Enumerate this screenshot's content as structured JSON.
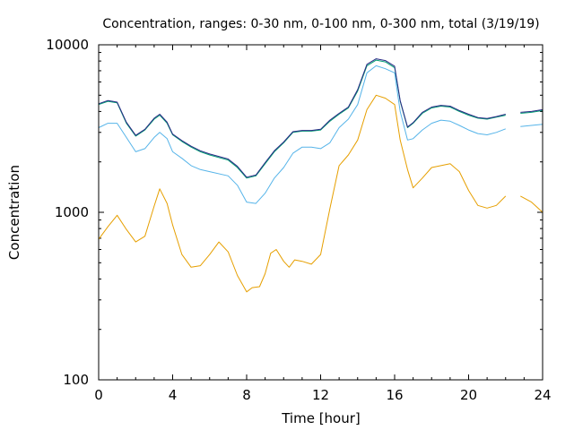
{
  "chart_data": {
    "type": "line",
    "title": "Concentration, ranges: 0-30 nm, 0-100 nm, 0-300 nm, total (3/19/19)",
    "xlabel": "Time [hour]",
    "ylabel": "Concentration",
    "xlim": [
      0,
      24
    ],
    "ylim": [
      100,
      10000
    ],
    "yscale": "log",
    "xticks": [
      0,
      4,
      8,
      12,
      16,
      20,
      24
    ],
    "yticks": [
      100,
      1000,
      10000
    ],
    "xtick_labels": [
      "0",
      "4",
      "8",
      "12",
      "16",
      "20",
      "24"
    ],
    "ytick_labels": [
      "100",
      "1000",
      "10000"
    ],
    "grid": false,
    "legend": "none",
    "series": [
      {
        "color": "#e69f00",
        "points": [
          [
            0,
            690
          ],
          [
            0.5,
            820
          ],
          [
            1,
            960
          ],
          [
            1.5,
            790
          ],
          [
            2,
            665
          ],
          [
            2.5,
            720
          ],
          [
            3,
            1090
          ],
          [
            3.3,
            1380
          ],
          [
            3.7,
            1130
          ],
          [
            4,
            840
          ],
          [
            4.5,
            560
          ],
          [
            5,
            470
          ],
          [
            5.5,
            480
          ],
          [
            6,
            560
          ],
          [
            6.5,
            665
          ],
          [
            7,
            580
          ],
          [
            7.5,
            420
          ],
          [
            8,
            335
          ],
          [
            8.3,
            355
          ],
          [
            8.7,
            360
          ],
          [
            9,
            430
          ],
          [
            9.3,
            570
          ],
          [
            9.6,
            600
          ],
          [
            10,
            510
          ],
          [
            10.3,
            470
          ],
          [
            10.6,
            520
          ],
          [
            11,
            510
          ],
          [
            11.5,
            490
          ],
          [
            12,
            560
          ],
          [
            12.5,
            1050
          ],
          [
            13,
            1900
          ],
          [
            13.5,
            2200
          ],
          [
            14,
            2700
          ],
          [
            14.5,
            4100
          ],
          [
            15,
            5000
          ],
          [
            15.5,
            4800
          ],
          [
            16,
            4400
          ],
          [
            16.3,
            2700
          ],
          [
            16.7,
            1800
          ],
          [
            17,
            1400
          ],
          [
            17.5,
            1600
          ],
          [
            18,
            1850
          ],
          [
            18.5,
            1900
          ],
          [
            19,
            1950
          ],
          [
            19.5,
            1750
          ],
          [
            20,
            1350
          ],
          [
            20.5,
            1100
          ],
          [
            21,
            1060
          ],
          [
            21.5,
            1100
          ],
          [
            22,
            1250
          ],
          [
            null,
            null
          ],
          [
            22.8,
            1250
          ],
          [
            23.4,
            1150
          ],
          [
            24,
            1000
          ]
        ]
      },
      {
        "color": "#56b4e9",
        "points": [
          [
            0,
            3200
          ],
          [
            0.5,
            3400
          ],
          [
            1,
            3400
          ],
          [
            1.5,
            2800
          ],
          [
            2,
            2300
          ],
          [
            2.5,
            2400
          ],
          [
            3,
            2800
          ],
          [
            3.3,
            3000
          ],
          [
            3.7,
            2750
          ],
          [
            4,
            2300
          ],
          [
            4.5,
            2100
          ],
          [
            5,
            1900
          ],
          [
            5.5,
            1800
          ],
          [
            6,
            1750
          ],
          [
            7,
            1650
          ],
          [
            7.5,
            1450
          ],
          [
            8,
            1150
          ],
          [
            8.5,
            1130
          ],
          [
            9,
            1300
          ],
          [
            9.5,
            1600
          ],
          [
            10,
            1850
          ],
          [
            10.5,
            2250
          ],
          [
            11,
            2450
          ],
          [
            11.5,
            2450
          ],
          [
            12,
            2400
          ],
          [
            12.5,
            2600
          ],
          [
            13,
            3200
          ],
          [
            13.5,
            3600
          ],
          [
            14,
            4400
          ],
          [
            14.5,
            6800
          ],
          [
            15,
            7500
          ],
          [
            15.5,
            7200
          ],
          [
            16,
            6800
          ],
          [
            16.3,
            4000
          ],
          [
            16.7,
            2700
          ],
          [
            17,
            2750
          ],
          [
            17.5,
            3100
          ],
          [
            18,
            3400
          ],
          [
            18.5,
            3550
          ],
          [
            19,
            3500
          ],
          [
            19.5,
            3300
          ],
          [
            20,
            3100
          ],
          [
            20.5,
            2950
          ],
          [
            21,
            2900
          ],
          [
            21.5,
            3000
          ],
          [
            22,
            3150
          ],
          [
            null,
            null
          ],
          [
            22.8,
            3250
          ],
          [
            23.4,
            3300
          ],
          [
            24,
            3350
          ]
        ]
      },
      {
        "color": "#009e73",
        "points": [
          [
            0,
            4400
          ],
          [
            0.5,
            4600
          ],
          [
            1,
            4500
          ],
          [
            1.5,
            3400
          ],
          [
            2,
            2850
          ],
          [
            2.5,
            3100
          ],
          [
            3,
            3600
          ],
          [
            3.3,
            3800
          ],
          [
            3.7,
            3400
          ],
          [
            4,
            2900
          ],
          [
            4.5,
            2650
          ],
          [
            5,
            2450
          ],
          [
            5.5,
            2300
          ],
          [
            6,
            2200
          ],
          [
            7,
            2050
          ],
          [
            7.5,
            1850
          ],
          [
            8,
            1600
          ],
          [
            8.5,
            1650
          ],
          [
            9,
            1950
          ],
          [
            9.5,
            2300
          ],
          [
            10,
            2600
          ],
          [
            10.5,
            3000
          ],
          [
            11,
            3050
          ],
          [
            11.5,
            3050
          ],
          [
            12,
            3100
          ],
          [
            12.5,
            3500
          ],
          [
            13,
            3850
          ],
          [
            13.5,
            4200
          ],
          [
            14,
            5300
          ],
          [
            14.5,
            7500
          ],
          [
            15,
            8100
          ],
          [
            15.5,
            7900
          ],
          [
            16,
            7300
          ],
          [
            16.3,
            4600
          ],
          [
            16.7,
            3200
          ],
          [
            17,
            3400
          ],
          [
            17.5,
            3900
          ],
          [
            18,
            4200
          ],
          [
            18.5,
            4300
          ],
          [
            19,
            4250
          ],
          [
            19.5,
            4000
          ],
          [
            20,
            3800
          ],
          [
            20.5,
            3650
          ],
          [
            21,
            3600
          ],
          [
            21.5,
            3700
          ],
          [
            22,
            3800
          ],
          [
            null,
            null
          ],
          [
            22.8,
            3900
          ],
          [
            23.4,
            3950
          ],
          [
            24,
            4050
          ]
        ]
      },
      {
        "color": "#2a2a86",
        "points": [
          [
            0,
            4450
          ],
          [
            0.5,
            4650
          ],
          [
            1,
            4550
          ],
          [
            1.5,
            3450
          ],
          [
            2,
            2880
          ],
          [
            2.5,
            3130
          ],
          [
            3,
            3650
          ],
          [
            3.3,
            3850
          ],
          [
            3.7,
            3450
          ],
          [
            4,
            2930
          ],
          [
            4.5,
            2680
          ],
          [
            5,
            2480
          ],
          [
            5.5,
            2330
          ],
          [
            6,
            2230
          ],
          [
            7,
            2080
          ],
          [
            7.5,
            1880
          ],
          [
            8,
            1620
          ],
          [
            8.5,
            1670
          ],
          [
            9,
            1980
          ],
          [
            9.5,
            2330
          ],
          [
            10,
            2630
          ],
          [
            10.5,
            3030
          ],
          [
            11,
            3080
          ],
          [
            11.5,
            3080
          ],
          [
            12,
            3130
          ],
          [
            12.5,
            3550
          ],
          [
            13,
            3900
          ],
          [
            13.5,
            4250
          ],
          [
            14,
            5400
          ],
          [
            14.5,
            7650
          ],
          [
            15,
            8250
          ],
          [
            15.5,
            8050
          ],
          [
            16,
            7450
          ],
          [
            16.3,
            4650
          ],
          [
            16.7,
            3230
          ],
          [
            17,
            3430
          ],
          [
            17.5,
            3950
          ],
          [
            18,
            4250
          ],
          [
            18.5,
            4350
          ],
          [
            19,
            4300
          ],
          [
            19.5,
            4050
          ],
          [
            20,
            3850
          ],
          [
            20.5,
            3680
          ],
          [
            21,
            3630
          ],
          [
            21.5,
            3730
          ],
          [
            22,
            3850
          ],
          [
            null,
            null
          ],
          [
            22.8,
            3950
          ],
          [
            23.4,
            4000
          ],
          [
            24,
            4100
          ]
        ]
      }
    ]
  }
}
